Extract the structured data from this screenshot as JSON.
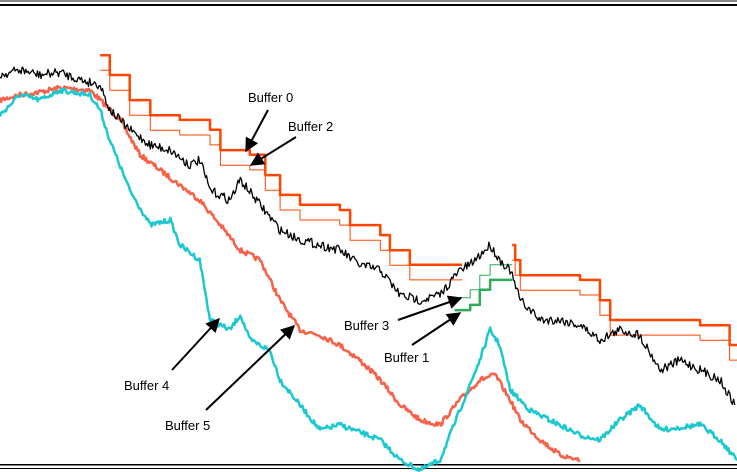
{
  "chart_data": {
    "type": "line",
    "title": "",
    "xlabel": "",
    "ylabel": "",
    "xlim": [
      0,
      100
    ],
    "ylim": [
      0,
      100
    ],
    "grid": false,
    "colors": {
      "price": "#000000",
      "buffer0": "#ff4500",
      "buffer2": "#ff4500",
      "buffer1": "#2eaa5a",
      "buffer3": "#2eaa5a",
      "buffer4": "#1cc8d0",
      "buffer5": "#f86048"
    },
    "series": [
      {
        "key": "price",
        "style": "noisy",
        "points": [
          [
            0,
            84.1
          ],
          [
            2.7,
            85.2
          ],
          [
            5.4,
            84.1
          ],
          [
            8.1,
            84.7
          ],
          [
            10.9,
            83.1
          ],
          [
            13.6,
            82
          ],
          [
            14.9,
            76.7
          ],
          [
            17.6,
            72.5
          ],
          [
            20.4,
            69.3
          ],
          [
            23.1,
            68.2
          ],
          [
            25.8,
            65
          ],
          [
            27.1,
            66.1
          ],
          [
            28.5,
            59.7
          ],
          [
            31.2,
            57.6
          ],
          [
            32.6,
            61.9
          ],
          [
            35.3,
            56.6
          ],
          [
            38,
            51.3
          ],
          [
            40.7,
            49.2
          ],
          [
            43.4,
            48.1
          ],
          [
            46.1,
            47
          ],
          [
            48.8,
            43.9
          ],
          [
            51.6,
            42.8
          ],
          [
            54.3,
            37.5
          ],
          [
            57,
            36.4
          ],
          [
            59.7,
            37.5
          ],
          [
            62.4,
            42.8
          ],
          [
            63.8,
            43.9
          ],
          [
            66.5,
            48.1
          ],
          [
            67.8,
            44.9
          ],
          [
            69.2,
            42.8
          ],
          [
            70.6,
            36.4
          ],
          [
            73.3,
            32.2
          ],
          [
            76,
            32.2
          ],
          [
            78.7,
            31.1
          ],
          [
            81.4,
            28
          ],
          [
            84.1,
            30.1
          ],
          [
            86.8,
            29
          ],
          [
            89.6,
            21.6
          ],
          [
            92.3,
            23.7
          ],
          [
            95,
            21.6
          ],
          [
            97.7,
            19.5
          ],
          [
            99.7,
            14.2
          ]
        ]
      },
      {
        "key": "buffer0",
        "name": "Buffer 0",
        "style": "step-thick",
        "points": [
          [
            13.6,
            88.3
          ],
          [
            14.9,
            84.1
          ],
          [
            17.6,
            78.8
          ],
          [
            20.4,
            75.6
          ],
          [
            24.4,
            74.6
          ],
          [
            28.5,
            72.5
          ],
          [
            29.9,
            68.2
          ],
          [
            33.9,
            67.2
          ],
          [
            36,
            62.9
          ],
          [
            38,
            58.7
          ],
          [
            40.7,
            56.6
          ],
          [
            46.1,
            55.5
          ],
          [
            47.5,
            52.3
          ],
          [
            51.6,
            50.2
          ],
          [
            52.9,
            47
          ],
          [
            55.6,
            43.9
          ],
          [
            62.7,
            43.9
          ],
          null,
          [
            69.5,
            48.1
          ],
          [
            69.9,
            44.9
          ],
          [
            70.6,
            41.7
          ],
          [
            78.7,
            40.7
          ],
          [
            81.4,
            36.4
          ],
          [
            82.8,
            32.2
          ],
          [
            95,
            31.1
          ],
          [
            99,
            26.9
          ],
          [
            100,
            26.9
          ]
        ]
      },
      {
        "key": "buffer2",
        "name": "Buffer 2",
        "style": "step-thin",
        "points": [
          [
            13.6,
            85.1
          ],
          [
            14.9,
            80.9
          ],
          [
            17.6,
            75.6
          ],
          [
            20.4,
            72.4
          ],
          [
            24.4,
            71.4
          ],
          [
            28.5,
            69.3
          ],
          [
            29.9,
            65
          ],
          [
            33.9,
            64
          ],
          [
            36,
            59.7
          ],
          [
            38,
            55.5
          ],
          [
            40.7,
            53.4
          ],
          [
            46.1,
            52.3
          ],
          [
            47.5,
            49.1
          ],
          [
            51.6,
            47
          ],
          [
            52.9,
            43.8
          ],
          [
            55.6,
            40.7
          ],
          [
            62.7,
            40.7
          ],
          null,
          [
            69.5,
            44.9
          ],
          [
            69.9,
            41.7
          ],
          [
            70.6,
            38.5
          ],
          [
            78.7,
            37.5
          ],
          [
            81.4,
            33.2
          ],
          [
            82.8,
            29
          ],
          [
            95,
            27.9
          ],
          [
            99,
            23.7
          ],
          [
            100,
            23.7
          ]
        ]
      },
      {
        "key": "buffer1",
        "name": "Buffer 1",
        "style": "step-thick",
        "points": [
          [
            61.7,
            34.3
          ],
          [
            63.8,
            35.4
          ],
          [
            65.1,
            38.6
          ],
          [
            66.5,
            40.7
          ],
          [
            69.5,
            40.7
          ]
        ]
      },
      {
        "key": "buffer3",
        "name": "Buffer 3",
        "style": "step-thin",
        "points": [
          [
            61.7,
            36.9
          ],
          [
            63.8,
            38.6
          ],
          [
            65.1,
            41.7
          ],
          [
            66.5,
            43.9
          ],
          [
            69.5,
            43.9
          ]
        ]
      },
      {
        "key": "buffer4",
        "name": "Buffer 4",
        "style": "noisy-thick",
        "points": [
          [
            0,
            75.6
          ],
          [
            2.7,
            79.9
          ],
          [
            5.4,
            78.8
          ],
          [
            8.1,
            80.9
          ],
          [
            12.2,
            79.9
          ],
          [
            13.6,
            76.7
          ],
          [
            14.9,
            70.3
          ],
          [
            17.6,
            59.7
          ],
          [
            20.4,
            52.3
          ],
          [
            23.1,
            53.4
          ],
          [
            24.4,
            48.1
          ],
          [
            27.1,
            44.9
          ],
          [
            28.5,
            32.2
          ],
          [
            31.2,
            30.1
          ],
          [
            32.6,
            33.3
          ],
          [
            33.9,
            28
          ],
          [
            36.6,
            25.8
          ],
          [
            38,
            19.5
          ],
          [
            40.7,
            14.2
          ],
          [
            43.4,
            8.9
          ],
          [
            46.1,
            10
          ],
          [
            51.6,
            6.8
          ],
          [
            54.3,
            2.5
          ],
          [
            57,
            0.4
          ],
          [
            59.7,
            2.5
          ],
          [
            62.4,
            13.1
          ],
          [
            65.1,
            23.7
          ],
          [
            66.5,
            30.1
          ],
          [
            67.8,
            26.9
          ],
          [
            69.2,
            17.4
          ],
          [
            71.9,
            13.1
          ],
          [
            74.6,
            11
          ],
          [
            78.7,
            7.8
          ],
          [
            81.4,
            6.8
          ],
          [
            84.1,
            11
          ],
          [
            86.8,
            14.2
          ],
          [
            89.6,
            8.9
          ],
          [
            95,
            10
          ],
          [
            97.7,
            6.8
          ],
          [
            100,
            2.5
          ]
        ]
      },
      {
        "key": "buffer5",
        "name": "Buffer 5",
        "style": "noisy-thick",
        "points": [
          [
            0,
            78.8
          ],
          [
            2.7,
            79.9
          ],
          [
            5.4,
            80.5
          ],
          [
            8.1,
            81.4
          ],
          [
            12.2,
            80.9
          ],
          [
            13.6,
            78.8
          ],
          [
            16.3,
            74.6
          ],
          [
            19,
            67.2
          ],
          [
            21.7,
            64
          ],
          [
            24.4,
            60.8
          ],
          [
            27.1,
            57.6
          ],
          [
            29.9,
            52.3
          ],
          [
            32.6,
            47
          ],
          [
            35.3,
            44.9
          ],
          [
            38,
            36.4
          ],
          [
            40.7,
            30.1
          ],
          [
            43.4,
            29
          ],
          [
            46.1,
            26.9
          ],
          [
            48.8,
            23.7
          ],
          [
            51.6,
            19.5
          ],
          [
            54.3,
            14.2
          ],
          [
            57,
            11
          ],
          [
            59.7,
            10
          ],
          [
            62.4,
            15.3
          ],
          [
            65.1,
            19.5
          ],
          [
            67.2,
            20.6
          ],
          [
            69.2,
            15.3
          ],
          [
            70.6,
            11
          ],
          [
            73.3,
            6.8
          ],
          [
            76,
            3.6
          ],
          [
            78.7,
            2.5
          ]
        ]
      }
    ],
    "annotations": {
      "buffer0": "Buffer 0",
      "buffer2": "Buffer 2",
      "buffer3": "Buffer 3",
      "buffer1": "Buffer 1",
      "buffer4": "Buffer 4",
      "buffer5": "Buffer 5"
    }
  }
}
